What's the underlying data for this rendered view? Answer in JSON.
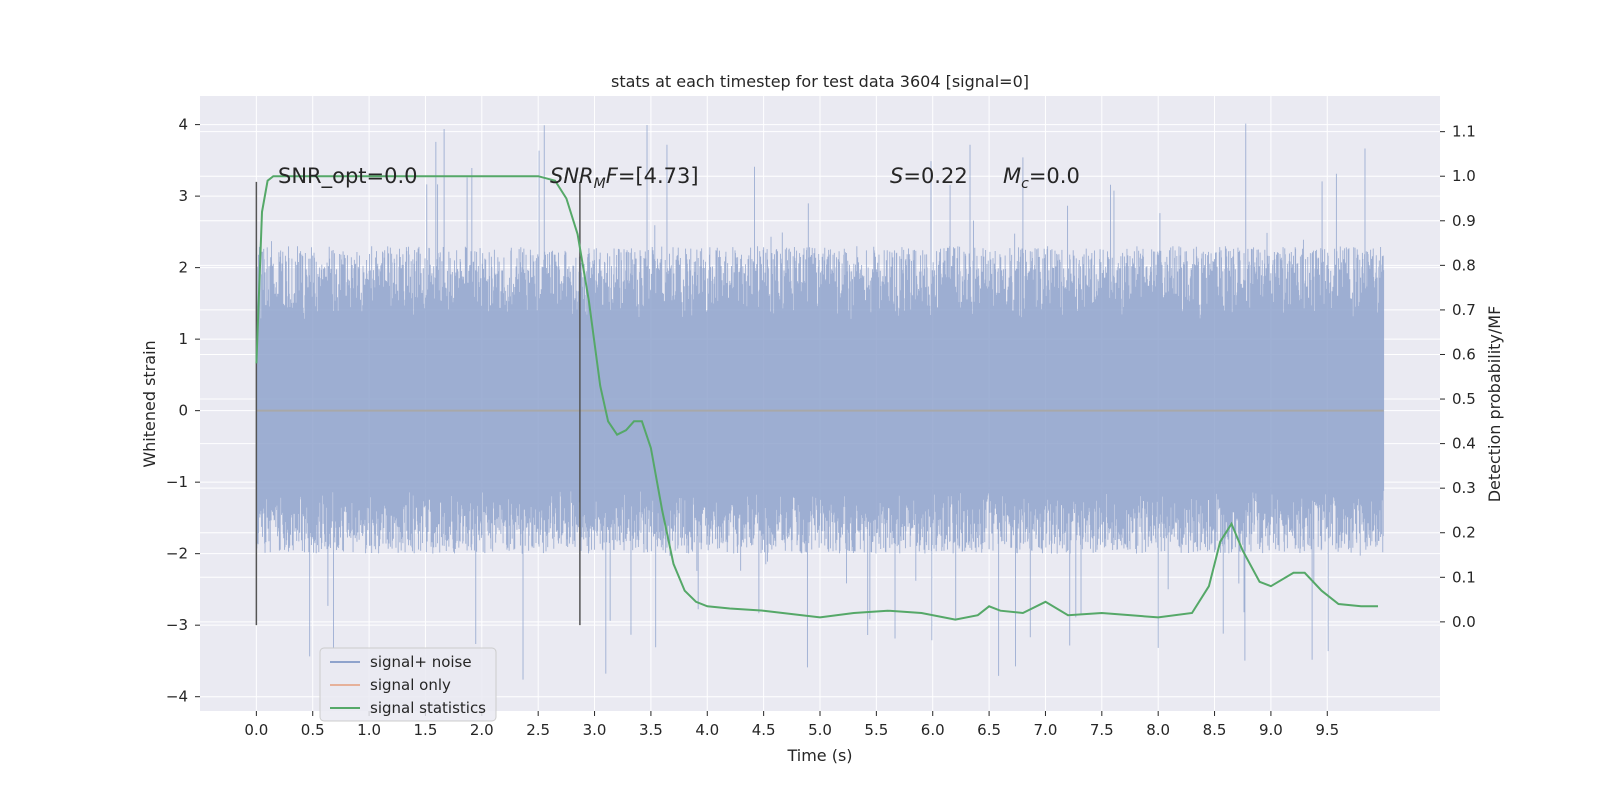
{
  "chart_data": {
    "type": "line",
    "title": "stats at each timestep for test data 3604 [signal=0]",
    "xlabel": "Time (s)",
    "ylabel": "Whitened strain",
    "ylabel_right": "Detection probability/MF",
    "xlim": [
      -0.5,
      10.5
    ],
    "ylim": [
      -4.2,
      4.4
    ],
    "ylim_right": [
      -0.2,
      1.18
    ],
    "x_ticks": [
      "0.0",
      "0.5",
      "1.0",
      "1.5",
      "2.0",
      "2.5",
      "3.0",
      "3.5",
      "4.0",
      "4.5",
      "5.0",
      "5.5",
      "6.0",
      "6.5",
      "7.0",
      "7.5",
      "8.0",
      "8.5",
      "9.0",
      "9.5"
    ],
    "y_ticks": [
      "−4",
      "−3",
      "−2",
      "−1",
      "0",
      "1",
      "2",
      "3",
      "4"
    ],
    "y_right_ticks": [
      "0.0",
      "0.1",
      "0.2",
      "0.3",
      "0.4",
      "0.5",
      "0.6",
      "0.7",
      "0.8",
      "0.9",
      "1.0",
      "1.1"
    ],
    "grid": true,
    "legend_location": "lower-left",
    "annotations": [
      {
        "text": "SNR_opt=0.0",
        "x": 0.2,
        "y": 3.2
      },
      {
        "text": "SNR_MF=[4.73]",
        "x": 2.6,
        "y": 3.2
      },
      {
        "text": "S=0.22",
        "x": 5.6,
        "y": 3.2
      },
      {
        "text": "M_c=0.0",
        "x": 6.6,
        "y": 3.2
      }
    ],
    "vertical_markers": [
      0.0,
      2.87
    ],
    "series": [
      {
        "name": "signal+ noise",
        "color": "#8fa3cc",
        "axis": "left",
        "kind": "noise",
        "x_range": [
          0.0,
          10.0
        ],
        "envelope": {
          "typical_max": 2.3,
          "typical_min": -2.0,
          "peak_max": 4.05,
          "peak_min": -3.8
        }
      },
      {
        "name": "signal only",
        "color": "#dd8452",
        "axis": "left",
        "x": [
          0.0,
          10.0
        ],
        "y": [
          0.0,
          0.0
        ]
      },
      {
        "name": "signal statistics",
        "color": "#55a868",
        "axis": "right",
        "x": [
          0.0,
          0.05,
          0.1,
          0.15,
          0.2,
          0.4,
          1.0,
          2.0,
          2.5,
          2.65,
          2.75,
          2.85,
          2.95,
          3.05,
          3.12,
          3.2,
          3.28,
          3.35,
          3.42,
          3.5,
          3.6,
          3.7,
          3.8,
          3.9,
          4.0,
          4.2,
          4.5,
          5.0,
          5.3,
          5.6,
          5.9,
          6.2,
          6.4,
          6.5,
          6.6,
          6.8,
          7.0,
          7.2,
          7.5,
          8.0,
          8.3,
          8.45,
          8.55,
          8.65,
          8.75,
          8.9,
          9.0,
          9.2,
          9.3,
          9.45,
          9.6,
          9.8,
          9.95
        ],
        "y": [
          0.58,
          0.92,
          0.99,
          1.0,
          1.0,
          1.0,
          1.0,
          1.0,
          1.0,
          0.99,
          0.95,
          0.87,
          0.72,
          0.53,
          0.45,
          0.42,
          0.43,
          0.45,
          0.45,
          0.39,
          0.25,
          0.13,
          0.07,
          0.045,
          0.035,
          0.03,
          0.025,
          0.01,
          0.02,
          0.025,
          0.02,
          0.005,
          0.015,
          0.035,
          0.025,
          0.02,
          0.045,
          0.015,
          0.02,
          0.01,
          0.02,
          0.08,
          0.18,
          0.22,
          0.16,
          0.09,
          0.08,
          0.11,
          0.11,
          0.07,
          0.04,
          0.035,
          0.035
        ]
      }
    ]
  }
}
